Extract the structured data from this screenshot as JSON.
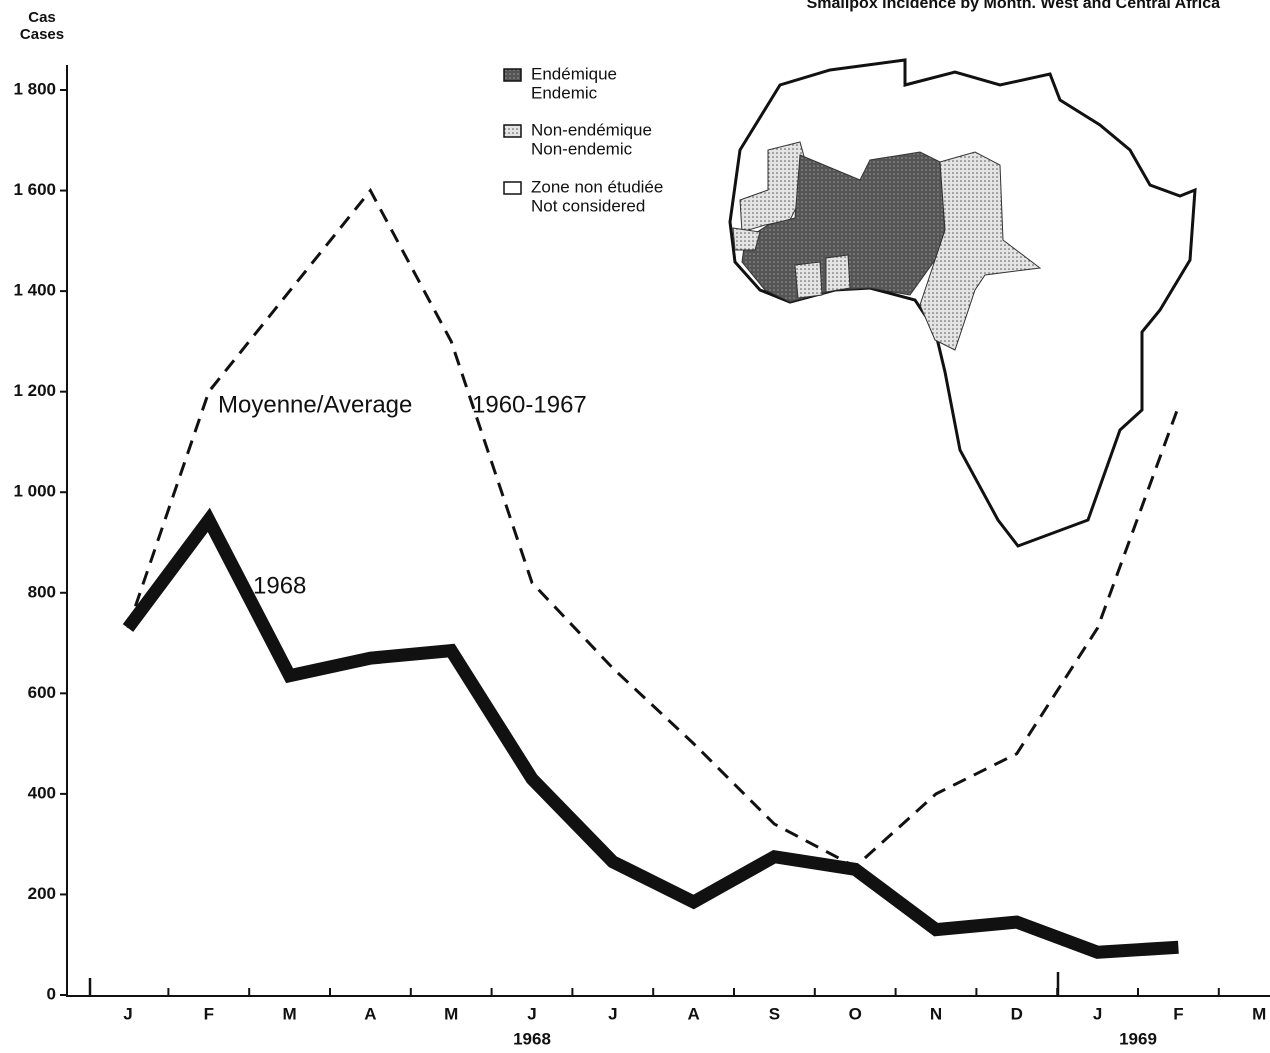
{
  "chart_data": {
    "type": "line",
    "title": "Smallpox incidence by Month. West and Central Africa",
    "y_label": [
      "Cas",
      "Cases"
    ],
    "categories": [
      "J",
      "F",
      "M",
      "A",
      "M",
      "J",
      "J",
      "A",
      "S",
      "O",
      "N",
      "D",
      "J",
      "F",
      "M"
    ],
    "x_groups": [
      "1968",
      "1969"
    ],
    "series": [
      {
        "name": "Moyenne/Average",
        "color": "#111111",
        "dash": true,
        "values": [
          730,
          1200,
          1400,
          1600,
          1300,
          820,
          650,
          500,
          340,
          255,
          400,
          480,
          730,
          1170,
          null
        ]
      },
      {
        "name": "1968",
        "color": "#111111",
        "dash": false,
        "values": [
          730,
          945,
          635,
          670,
          685,
          430,
          265,
          185,
          275,
          250,
          130,
          145,
          85,
          95,
          null
        ]
      }
    ],
    "annotations": [
      "1960-1967"
    ],
    "ylim": [
      0,
      1800
    ],
    "yticks": [
      0,
      200,
      400,
      600,
      800,
      {
        "value": 1000,
        "label": "1 000"
      },
      {
        "value": 1200,
        "label": "1 200"
      },
      {
        "value": 1400,
        "label": "1 400"
      },
      {
        "value": 1600,
        "label": "1 600"
      },
      {
        "value": 1800,
        "label": "1 800"
      }
    ],
    "map_legend": [
      {
        "label": [
          "Endémique",
          "Endemic"
        ],
        "fill": "dark"
      },
      {
        "label": [
          "Non-endémique",
          "Non-endemic"
        ],
        "fill": "dotted"
      },
      {
        "label": [
          "Zone non étudiée",
          "Not considered"
        ],
        "fill": "white"
      }
    ]
  }
}
